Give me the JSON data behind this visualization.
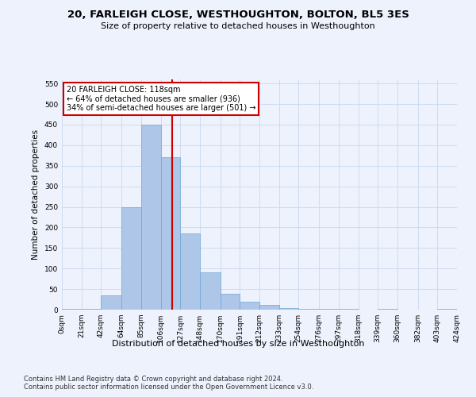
{
  "title": "20, FARLEIGH CLOSE, WESTHOUGHTON, BOLTON, BL5 3ES",
  "subtitle": "Size of property relative to detached houses in Westhoughton",
  "xlabel": "Distribution of detached houses by size in Westhoughton",
  "ylabel": "Number of detached properties",
  "footnote1": "Contains HM Land Registry data © Crown copyright and database right 2024.",
  "footnote2": "Contains public sector information licensed under the Open Government Licence v3.0.",
  "annotation_line1": "20 FARLEIGH CLOSE: 118sqm",
  "annotation_line2": "← 64% of detached houses are smaller (936)",
  "annotation_line3": "34% of semi-detached houses are larger (501) →",
  "property_size": 118,
  "bin_edges": [
    0,
    21,
    42,
    64,
    85,
    106,
    127,
    148,
    170,
    191,
    212,
    233,
    254,
    276,
    297,
    318,
    339,
    360,
    382,
    403,
    424
  ],
  "bar_heights": [
    2,
    2,
    35,
    250,
    450,
    370,
    185,
    90,
    38,
    20,
    12,
    3,
    2,
    1,
    1,
    0,
    1,
    0,
    0,
    1
  ],
  "bar_color": "#aec6e8",
  "bar_edge_color": "#6aaad4",
  "bar_edge_width": 0.5,
  "vline_color": "#cc0000",
  "vline_x": 118,
  "annotation_box_color": "#cc0000",
  "annotation_text_color": "#000000",
  "bg_color": "#eef2fc",
  "grid_color": "#c8d8f0",
  "ylim": [
    0,
    560
  ],
  "yticks": [
    0,
    50,
    100,
    150,
    200,
    250,
    300,
    350,
    400,
    450,
    500,
    550
  ],
  "title_fontsize": 9.5,
  "subtitle_fontsize": 8,
  "ylabel_fontsize": 7.5,
  "xlabel_fontsize": 8,
  "tick_fontsize": 6.5,
  "annotation_fontsize": 7,
  "footnote_fontsize": 6
}
